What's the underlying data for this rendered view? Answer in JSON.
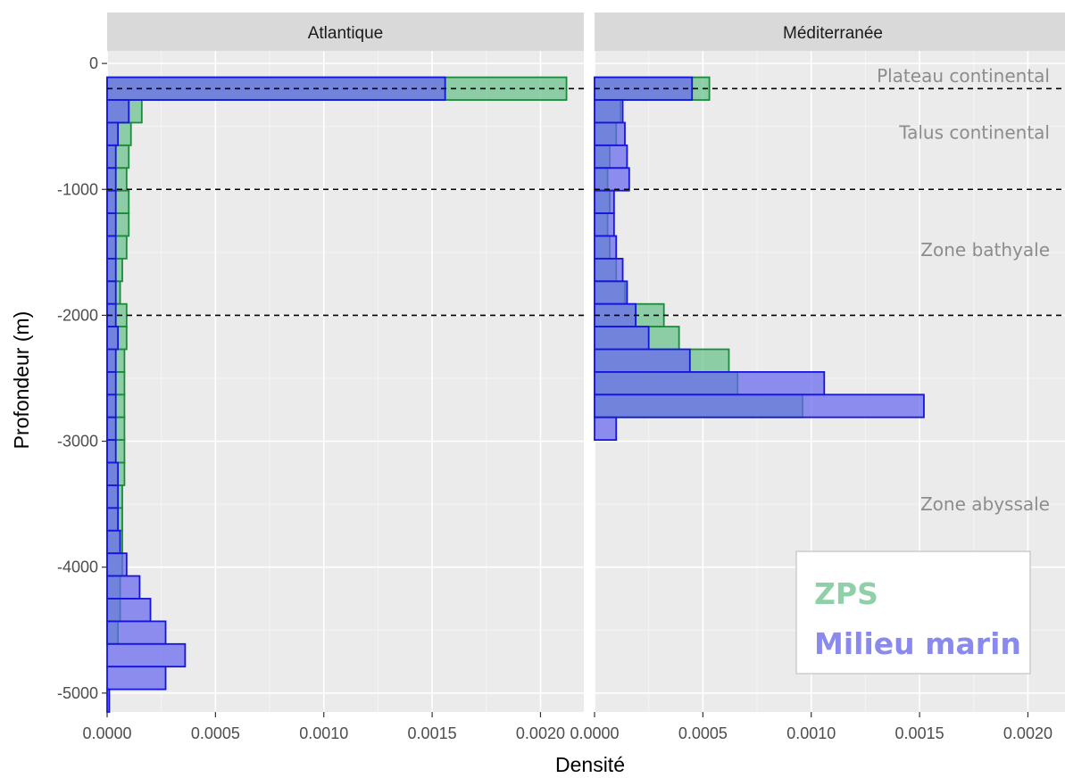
{
  "chart_data": {
    "type": "histogram",
    "xlabel": "Densité",
    "ylabel": "Profondeur (m)",
    "xlim": [
      0,
      0.0022
    ],
    "ylim": [
      -5150,
      100
    ],
    "x_ticks": [
      "0.0000",
      "0.0005",
      "0.0010",
      "0.0015",
      "0.0020"
    ],
    "y_ticks": [
      "-5000",
      "-4000",
      "-3000",
      "-2000",
      "-1000",
      "0"
    ],
    "grid": true,
    "legend_position": "bottom-right",
    "colors": {
      "zps": "#66c08a",
      "marine": "#6666ee",
      "zps_line": "#1b8a3a",
      "marine_line": "#1515dd"
    },
    "series_names": {
      "zps": "ZPS",
      "marine": "Milieu marin"
    },
    "reference_lines": [
      {
        "depth": -200,
        "style": "dashed"
      },
      {
        "depth": -1000,
        "style": "dashed"
      },
      {
        "depth": -2000,
        "style": "dashed"
      }
    ],
    "zone_labels": [
      {
        "text": "Plateau continental",
        "depth": -100
      },
      {
        "text": "Talus continental",
        "depth": -550
      },
      {
        "text": "Zone bathyale",
        "depth": -1480
      },
      {
        "text": "Zone abyssale",
        "depth": -3500
      }
    ],
    "bin_depths": [
      -200,
      -380,
      -560,
      -740,
      -920,
      -1100,
      -1280,
      -1460,
      -1640,
      -1820,
      -2000,
      -2180,
      -2360,
      -2540,
      -2720,
      -2900,
      -3080,
      -3260,
      -3440,
      -3620,
      -3800,
      -3980,
      -4160,
      -4340,
      -4520,
      -4700,
      -4880,
      -5060
    ],
    "bin_height": 180,
    "panels": [
      {
        "name": "Atlantique",
        "series": [
          {
            "key": "zps",
            "values": [
              0.00212,
              0.00016,
              0.00011,
              0.0001,
              9e-05,
              0.0001,
              0.0001,
              9e-05,
              7e-05,
              6e-05,
              9e-05,
              9e-05,
              8e-05,
              8e-05,
              8e-05,
              8e-05,
              8e-05,
              8e-05,
              7e-05,
              7e-05,
              7e-05,
              7e-05,
              6e-05,
              6e-05,
              5e-05,
              0.0,
              0.0,
              0.0
            ]
          },
          {
            "key": "marine",
            "values": [
              0.00156,
              0.0001,
              5e-05,
              4e-05,
              4e-05,
              4e-05,
              4e-05,
              4e-05,
              4e-05,
              4e-05,
              4e-05,
              5e-05,
              4e-05,
              4e-05,
              4e-05,
              4e-05,
              4e-05,
              5e-05,
              5e-05,
              5e-05,
              6e-05,
              9e-05,
              0.00015,
              0.0002,
              0.00027,
              0.00036,
              0.00027,
              1e-05
            ]
          }
        ]
      },
      {
        "name": "Méditerranée",
        "series": [
          {
            "key": "zps",
            "values": [
              0.00053,
              0.00012,
              0.0001,
              7e-05,
              6e-05,
              7e-05,
              6e-05,
              7e-05,
              0.0001,
              0.00014,
              0.00032,
              0.00039,
              0.00062,
              0.00066,
              0.00096,
              0.0,
              0.0,
              0.0,
              0.0,
              0.0,
              0.0,
              0.0,
              0.0,
              0.0,
              0.0,
              0.0,
              0.0,
              0.0
            ]
          },
          {
            "key": "marine",
            "values": [
              0.00045,
              0.00013,
              0.00014,
              0.00015,
              0.00016,
              9e-05,
              9e-05,
              0.0001,
              0.00013,
              0.00015,
              0.00019,
              0.00025,
              0.00044,
              0.00106,
              0.00152,
              0.0001,
              0.0,
              0.0,
              0.0,
              0.0,
              0.0,
              0.0,
              0.0,
              0.0,
              0.0,
              0.0,
              0.0,
              0.0
            ]
          }
        ]
      }
    ]
  }
}
